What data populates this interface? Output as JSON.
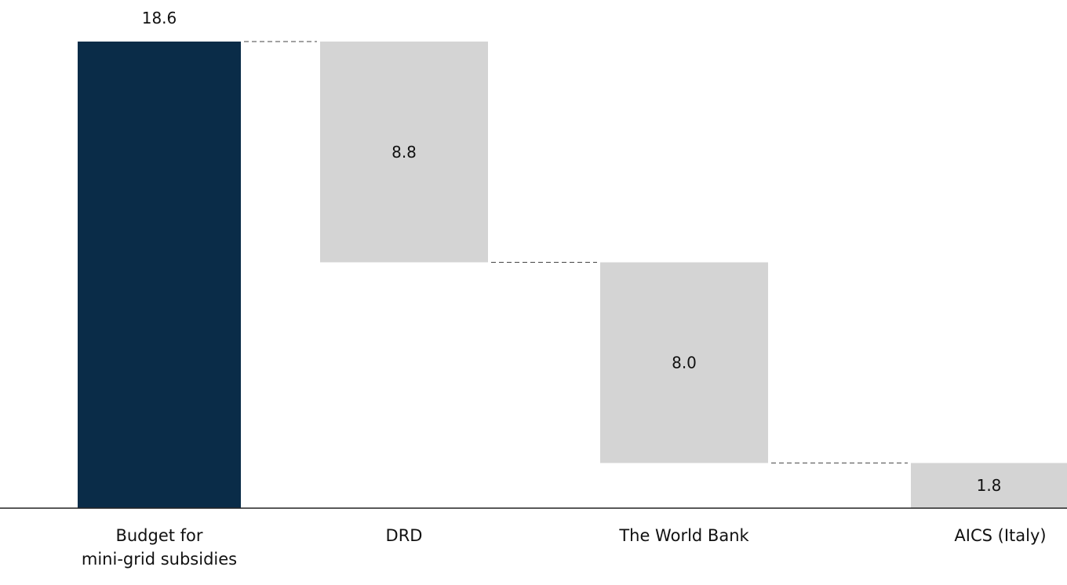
{
  "colors": {
    "total": "#0a2c48",
    "contribution": "#d4d4d4",
    "axis": "#222222",
    "connector": "#444444"
  },
  "chart_data": {
    "type": "bar",
    "subtype": "waterfall",
    "categories": [
      "Budget for\nmini-grid subsidies",
      "DRD",
      "The World Bank",
      "AICS (Italy)"
    ],
    "values": [
      18.6,
      8.8,
      8.0,
      1.8
    ],
    "value_labels": [
      "18.6",
      "8.8",
      "8.0",
      "1.8"
    ],
    "kinds": [
      "total",
      "contribution",
      "contribution",
      "contribution"
    ],
    "title": "",
    "xlabel": "",
    "ylabel": "",
    "ylim": [
      0,
      18.6
    ],
    "grid": false,
    "legend": "none"
  }
}
